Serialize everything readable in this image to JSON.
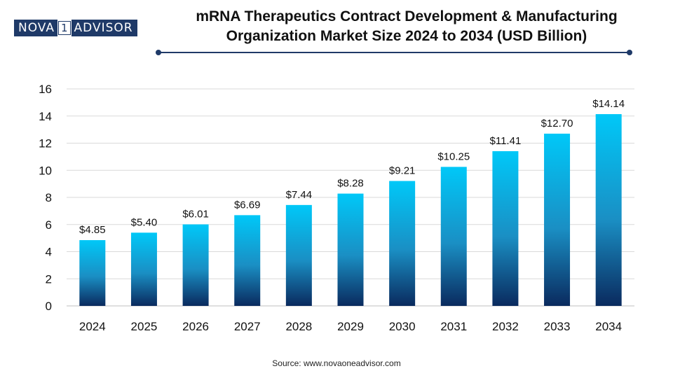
{
  "logo": {
    "part1": "NOVA",
    "part2": "1",
    "part3": "ADVISOR"
  },
  "title_line1": "mRNA Therapeutics Contract Development & Manufacturing",
  "title_line2": "Organization Market Size 2024 to 2034 (USD Billion)",
  "source": "Source: www.novaoneadvisor.com",
  "colors": {
    "bar_top": "#00c8f8",
    "bar_bottom": "#0a2a5e",
    "brand": "#1f3a68",
    "grid": "#d9d9d9"
  },
  "chart_data": {
    "type": "bar",
    "title": "mRNA Therapeutics Contract Development & Manufacturing Organization Market Size 2024 to 2034 (USD Billion)",
    "categories": [
      "2024",
      "2025",
      "2026",
      "2027",
      "2028",
      "2029",
      "2030",
      "2031",
      "2032",
      "2033",
      "2034"
    ],
    "values": [
      4.85,
      5.4,
      6.01,
      6.69,
      7.44,
      8.28,
      9.21,
      10.25,
      11.41,
      12.7,
      14.14
    ],
    "labels": [
      "$4.85",
      "$5.40",
      "$6.01",
      "$6.69",
      "$7.44",
      "$8.28",
      "$9.21",
      "$10.25",
      "$11.41",
      "$12.70",
      "$14.14"
    ],
    "yticks": [
      "0",
      "2",
      "4",
      "6",
      "8",
      "10",
      "12",
      "14",
      "16"
    ],
    "ylim": [
      0,
      16
    ],
    "xlabel": "",
    "ylabel": "",
    "grid": true
  }
}
